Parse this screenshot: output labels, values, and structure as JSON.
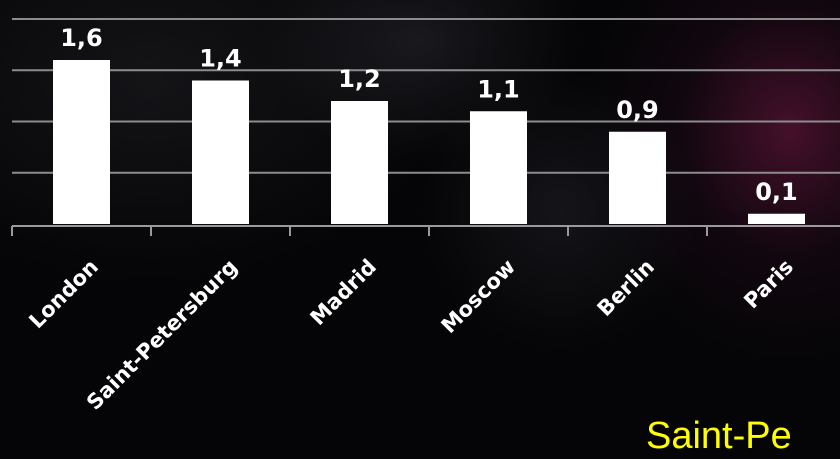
{
  "caption": "Saint-Pe",
  "colors": {
    "bar": "#ffffff",
    "gridline": "#8c8c8c",
    "axis": "#9a9a9a",
    "text": "#ffffff",
    "caption": "#ffff00"
  },
  "chart_data": {
    "type": "bar",
    "categories": [
      "London",
      "Saint-Petersburg",
      "Madrid",
      "Moscow",
      "Berlin",
      "Paris"
    ],
    "values": [
      1.6,
      1.4,
      1.2,
      1.1,
      0.9,
      0.1
    ],
    "data_labels": [
      "1,6",
      "1,4",
      "1,2",
      "1,1",
      "0,9",
      "0,1"
    ],
    "ylim": [
      0,
      2
    ],
    "grid": true,
    "legend": "none"
  }
}
